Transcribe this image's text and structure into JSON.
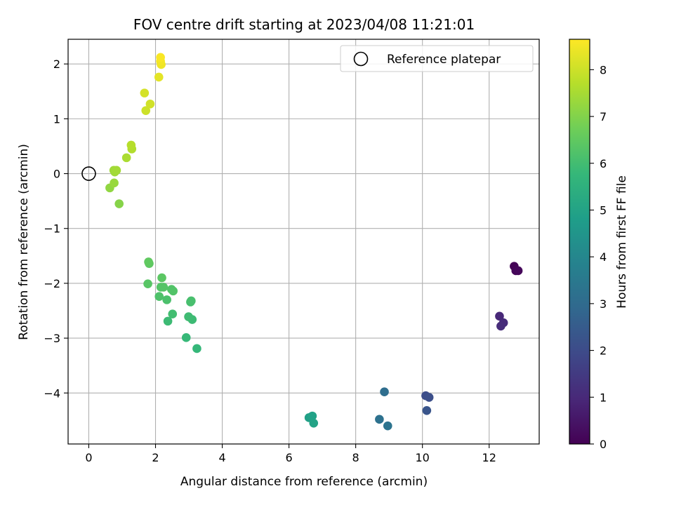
{
  "chart_data": {
    "type": "scatter",
    "title": "FOV centre drift starting at 2023/04/08 11:21:01",
    "xlabel": "Angular distance from reference (arcmin)",
    "ylabel": "Rotation from reference (arcmin)",
    "colorbar_label": "Hours from first FF file",
    "xlim": [
      -0.62,
      13.5
    ],
    "ylim": [
      -4.93,
      2.45
    ],
    "clim": [
      0,
      8.65
    ],
    "grid": true,
    "xticks": [
      0,
      2,
      4,
      6,
      8,
      10,
      12
    ],
    "xtick_labels": [
      "0",
      "2",
      "4",
      "6",
      "8",
      "10",
      "12"
    ],
    "yticks": [
      2,
      1,
      0,
      -1,
      -2,
      -3,
      -4
    ],
    "ytick_labels": [
      "2",
      "1",
      "0",
      "−1",
      "−2",
      "−3",
      "−4"
    ],
    "cticks": [
      0,
      1,
      2,
      3,
      4,
      5,
      6,
      7,
      8
    ],
    "ctick_labels": [
      "0",
      "1",
      "2",
      "3",
      "4",
      "5",
      "6",
      "7",
      "8"
    ],
    "legend": {
      "location": "top-right",
      "label": "Reference platepar"
    },
    "reference_point": {
      "x": 0,
      "y": 0
    },
    "colors": {
      "viridis": [
        "#440154",
        "#482878",
        "#3e4989",
        "#31688e",
        "#26828e",
        "#1f9e89",
        "#35b779",
        "#6ece58",
        "#b5de2b",
        "#fde725"
      ],
      "grid": "#b0b0b0",
      "reference_marker": "#000000"
    },
    "points": [
      {
        "x": 12.75,
        "y": -1.69,
        "hours": 0.05
      },
      {
        "x": 12.8,
        "y": -1.77,
        "hours": 0.1
      },
      {
        "x": 12.87,
        "y": -1.77,
        "hours": 0.15
      },
      {
        "x": 12.31,
        "y": -2.6,
        "hours": 0.95
      },
      {
        "x": 12.43,
        "y": -2.72,
        "hours": 1.05
      },
      {
        "x": 12.35,
        "y": -2.78,
        "hours": 1.1
      },
      {
        "x": 10.1,
        "y": -4.05,
        "hours": 2.05
      },
      {
        "x": 10.2,
        "y": -4.08,
        "hours": 2.1
      },
      {
        "x": 10.13,
        "y": -4.32,
        "hours": 2.3
      },
      {
        "x": 8.86,
        "y": -3.98,
        "hours": 3.1
      },
      {
        "x": 8.71,
        "y": -4.48,
        "hours": 3.2
      },
      {
        "x": 8.96,
        "y": -4.6,
        "hours": 3.3
      },
      {
        "x": 6.6,
        "y": -4.45,
        "hours": 4.9
      },
      {
        "x": 6.7,
        "y": -4.42,
        "hours": 4.95
      },
      {
        "x": 6.74,
        "y": -4.55,
        "hours": 5.0
      },
      {
        "x": 3.24,
        "y": -3.19,
        "hours": 5.75
      },
      {
        "x": 2.92,
        "y": -2.99,
        "hours": 5.8
      },
      {
        "x": 2.37,
        "y": -2.69,
        "hours": 5.9
      },
      {
        "x": 3.1,
        "y": -2.66,
        "hours": 5.9
      },
      {
        "x": 2.99,
        "y": -2.61,
        "hours": 5.95
      },
      {
        "x": 2.51,
        "y": -2.56,
        "hours": 6.0
      },
      {
        "x": 3.05,
        "y": -2.34,
        "hours": 6.05
      },
      {
        "x": 3.07,
        "y": -2.32,
        "hours": 6.1
      },
      {
        "x": 2.34,
        "y": -2.3,
        "hours": 6.15
      },
      {
        "x": 2.11,
        "y": -2.24,
        "hours": 6.2
      },
      {
        "x": 2.53,
        "y": -2.14,
        "hours": 6.25
      },
      {
        "x": 2.48,
        "y": -2.11,
        "hours": 6.25
      },
      {
        "x": 2.16,
        "y": -2.07,
        "hours": 6.3
      },
      {
        "x": 2.24,
        "y": -2.07,
        "hours": 6.3
      },
      {
        "x": 1.77,
        "y": -2.01,
        "hours": 6.35
      },
      {
        "x": 2.19,
        "y": -1.9,
        "hours": 6.4
      },
      {
        "x": 1.81,
        "y": -1.64,
        "hours": 6.45
      },
      {
        "x": 1.79,
        "y": -1.61,
        "hours": 6.5
      },
      {
        "x": 0.91,
        "y": -0.55,
        "hours": 7.05
      },
      {
        "x": 0.63,
        "y": -0.26,
        "hours": 7.2
      },
      {
        "x": 0.76,
        "y": -0.17,
        "hours": 7.3
      },
      {
        "x": 0.78,
        "y": 0.03,
        "hours": 7.4
      },
      {
        "x": 0.75,
        "y": 0.06,
        "hours": 7.4
      },
      {
        "x": 0.83,
        "y": 0.06,
        "hours": 7.45
      },
      {
        "x": 1.13,
        "y": 0.29,
        "hours": 7.55
      },
      {
        "x": 1.29,
        "y": 0.45,
        "hours": 7.65
      },
      {
        "x": 1.27,
        "y": 0.52,
        "hours": 7.7
      },
      {
        "x": 1.71,
        "y": 1.15,
        "hours": 8.0
      },
      {
        "x": 1.84,
        "y": 1.27,
        "hours": 8.05
      },
      {
        "x": 1.67,
        "y": 1.47,
        "hours": 8.1
      },
      {
        "x": 2.1,
        "y": 1.76,
        "hours": 8.3
      },
      {
        "x": 2.17,
        "y": 1.99,
        "hours": 8.45
      },
      {
        "x": 2.15,
        "y": 2.05,
        "hours": 8.5
      },
      {
        "x": 2.15,
        "y": 2.12,
        "hours": 8.6
      }
    ]
  }
}
